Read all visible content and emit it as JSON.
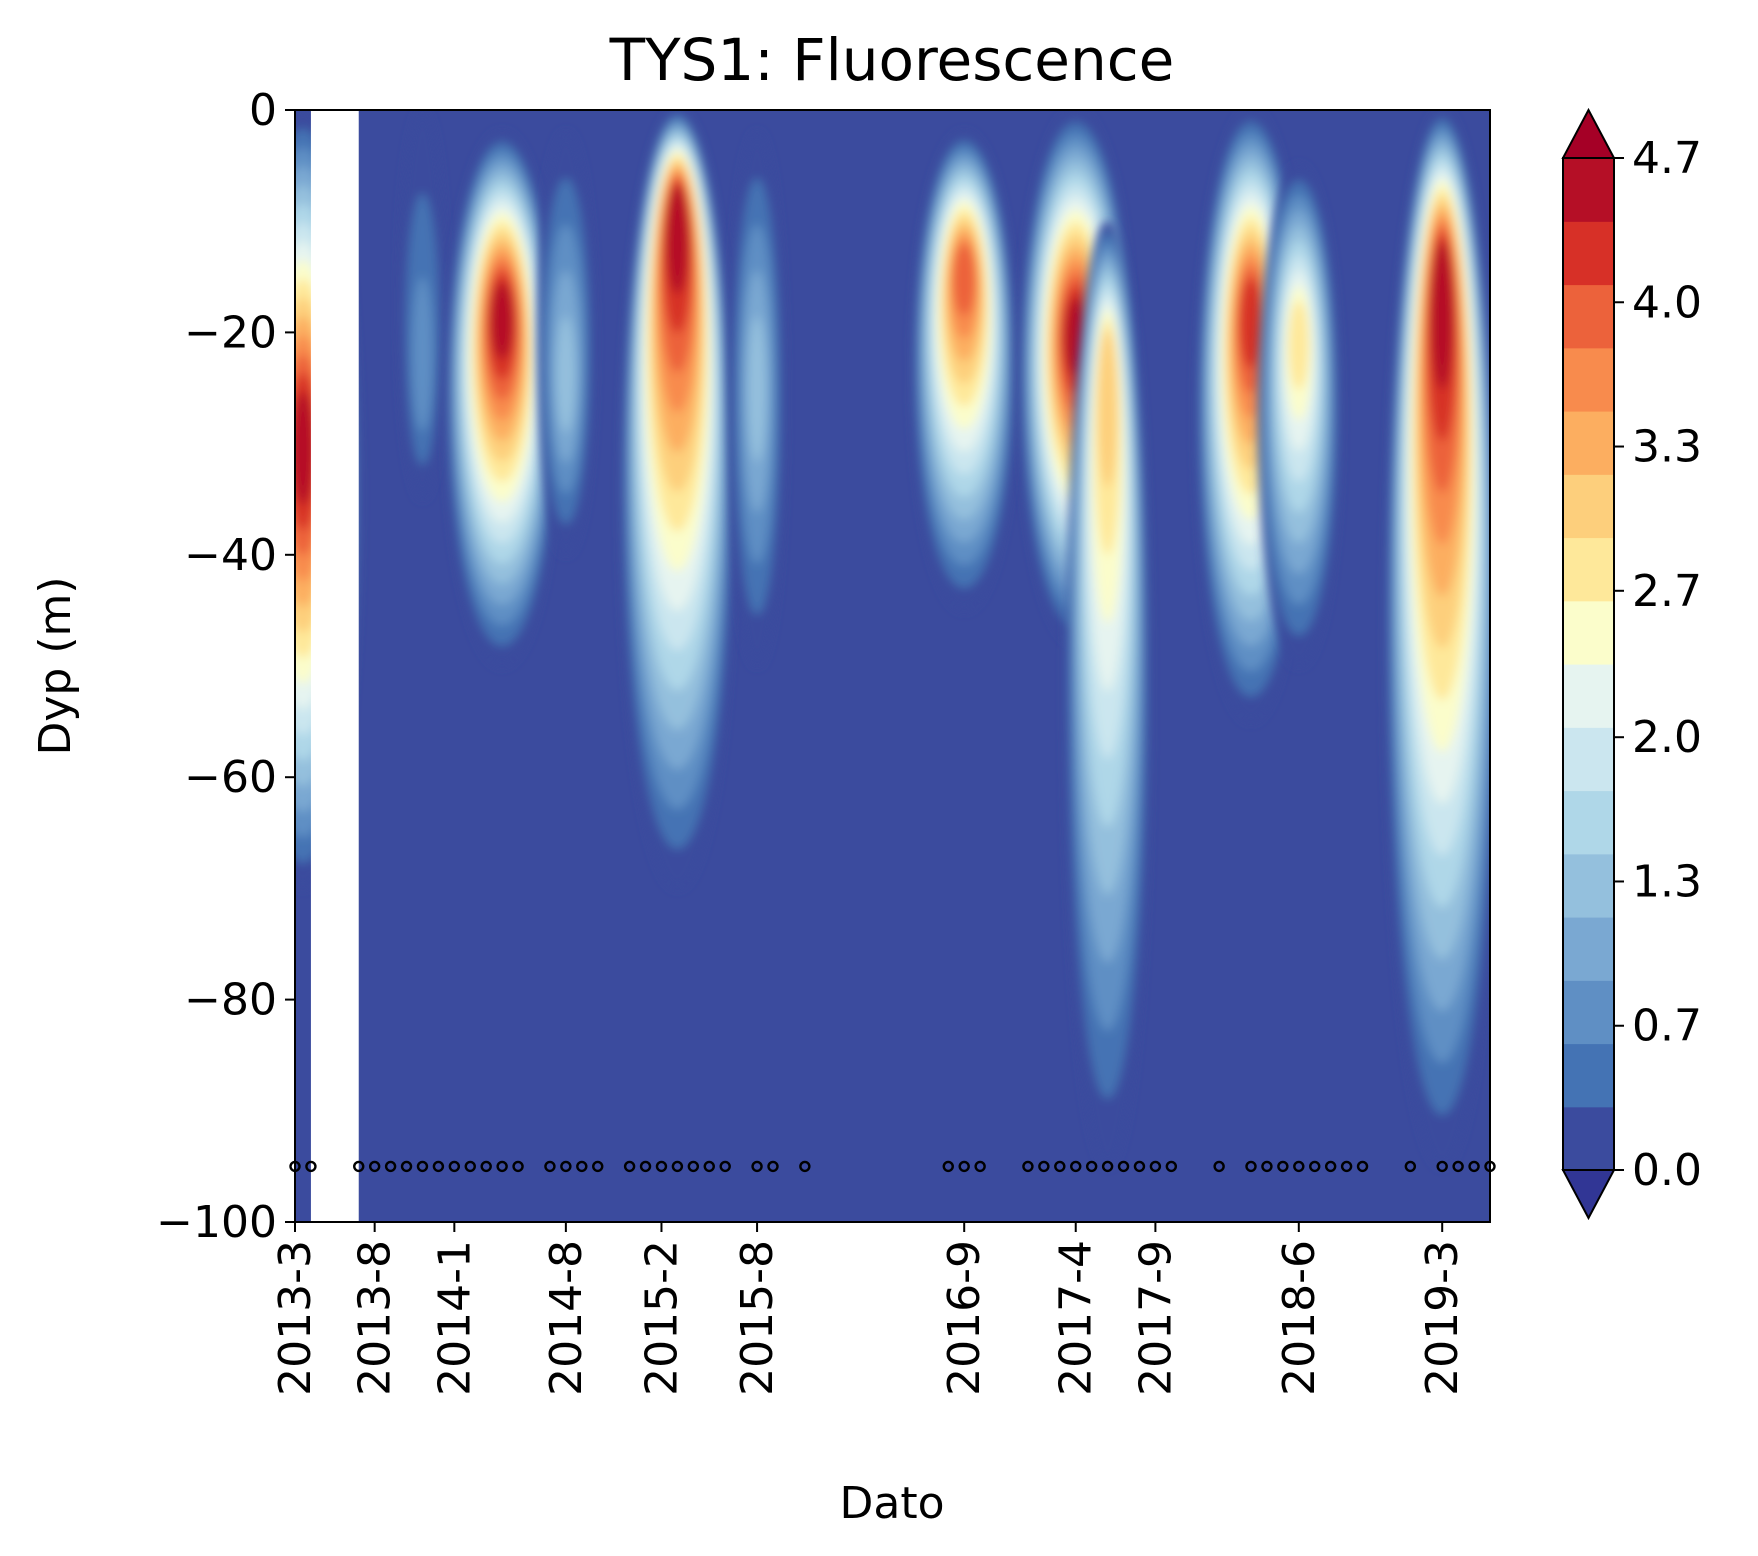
{
  "chart_data": {
    "type": "heatmap",
    "title": "TYS1: Fluorescence",
    "xlabel": "Dato",
    "ylabel": "Dyp (m)",
    "ylim": [
      -100,
      0
    ],
    "xlim": [
      "2013-3",
      "2019-6"
    ],
    "x_ticks": [
      {
        "label": "2013-3",
        "date": "2013-03"
      },
      {
        "label": "2013-8",
        "date": "2013-08"
      },
      {
        "label": "2014-1",
        "date": "2014-01"
      },
      {
        "label": "2014-8",
        "date": "2014-08"
      },
      {
        "label": "2015-2",
        "date": "2015-02"
      },
      {
        "label": "2015-8",
        "date": "2015-08"
      },
      {
        "label": "2016-9",
        "date": "2016-09"
      },
      {
        "label": "2017-4",
        "date": "2017-04"
      },
      {
        "label": "2017-9",
        "date": "2017-09"
      },
      {
        "label": "2018-6",
        "date": "2018-06"
      },
      {
        "label": "2019-3",
        "date": "2019-03"
      }
    ],
    "y_ticks": [
      {
        "label": "0",
        "value": 0
      },
      {
        "label": "−20",
        "value": -20
      },
      {
        "label": "−40",
        "value": -40
      },
      {
        "label": "−60",
        "value": -60
      },
      {
        "label": "−80",
        "value": -80
      },
      {
        "label": "−100",
        "value": -100
      }
    ],
    "colorbar": {
      "min": 0.0,
      "max": 4.7,
      "extend": "both",
      "ticks": [
        {
          "label": "0.0",
          "value": 0.0
        },
        {
          "label": "0.7",
          "value": 0.67
        },
        {
          "label": "1.3",
          "value": 1.34
        },
        {
          "label": "2.0",
          "value": 2.01
        },
        {
          "label": "2.7",
          "value": 2.69
        },
        {
          "label": "3.3",
          "value": 3.36
        },
        {
          "label": "4.0",
          "value": 4.03
        },
        {
          "label": "4.7",
          "value": 4.7
        }
      ],
      "colors": [
        "#3b4b9e",
        "#4473b4",
        "#5f8fc4",
        "#7aa8d2",
        "#94c0dd",
        "#afd7e8",
        "#cbe6ef",
        "#e6f4f0",
        "#fbfdcb",
        "#fee89a",
        "#fdcf7c",
        "#fcae60",
        "#f88b4d",
        "#ec623b",
        "#d73027",
        "#b50f26"
      ],
      "under_color": "#313695",
      "over_color": "#a50026"
    },
    "gap_period": [
      "2013-04",
      "2013-07"
    ],
    "blooms": [
      {
        "date": "2013-03.5",
        "top": 0,
        "bottom": -70,
        "peak": 4.7,
        "peak_depth": -30
      },
      {
        "date": "2013-11",
        "top": 0,
        "bottom": -35,
        "peak": 1.0,
        "peak_depth": -25
      },
      {
        "date": "2014-04",
        "top": -2,
        "bottom": -50,
        "peak": 4.7,
        "peak_depth": -18
      },
      {
        "date": "2014-08",
        "top": -2,
        "bottom": -40,
        "peak": 1.6,
        "peak_depth": -25
      },
      {
        "date": "2015-03",
        "top": 0,
        "bottom": -70,
        "peak": 4.7,
        "peak_depth": -8
      },
      {
        "date": "2015-08",
        "top": -2,
        "bottom": -50,
        "peak": 1.5,
        "peak_depth": -25
      },
      {
        "date": "2016-09",
        "top": -2,
        "bottom": -45,
        "peak": 4.2,
        "peak_depth": -14
      },
      {
        "date": "2017-04",
        "top": 0,
        "bottom": -48,
        "peak": 4.7,
        "peak_depth": -20
      },
      {
        "date": "2017-06",
        "top": -10,
        "bottom": -95,
        "peak": 3.1,
        "peak_depth": -22
      },
      {
        "date": "2018-03",
        "top": 0,
        "bottom": -55,
        "peak": 4.5,
        "peak_depth": -18
      },
      {
        "date": "2018-06",
        "top": -5,
        "bottom": -50,
        "peak": 3.0,
        "peak_depth": -20
      },
      {
        "date": "2019-03",
        "top": 0,
        "bottom": -95,
        "peak": 4.7,
        "peak_depth": -14
      }
    ],
    "sample_depth": -95,
    "sample_dates": [
      "2013-03",
      "2013-04",
      "2013-07",
      "2013-08",
      "2013-09",
      "2013-10",
      "2013-11",
      "2013-12",
      "2014-01",
      "2014-02",
      "2014-03",
      "2014-04",
      "2014-05",
      "2014-07",
      "2014-08",
      "2014-09",
      "2014-10",
      "2014-12",
      "2015-01",
      "2015-02",
      "2015-03",
      "2015-04",
      "2015-05",
      "2015-06",
      "2015-08",
      "2015-09",
      "2015-11",
      "2016-08",
      "2016-09",
      "2016-10",
      "2017-01",
      "2017-02",
      "2017-03",
      "2017-04",
      "2017-05",
      "2017-06",
      "2017-07",
      "2017-08",
      "2017-09",
      "2017-10",
      "2018-01",
      "2018-03",
      "2018-04",
      "2018-05",
      "2018-06",
      "2018-07",
      "2018-08",
      "2018-09",
      "2018-10",
      "2019-01",
      "2019-03",
      "2019-04",
      "2019-05",
      "2019-06"
    ]
  }
}
